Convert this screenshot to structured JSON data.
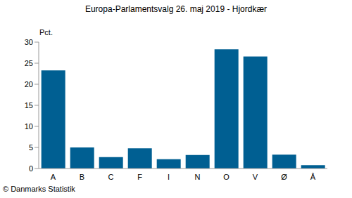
{
  "chart_data": {
    "type": "bar",
    "title": "Europa-Parlamentsvalg 26. maj 2019 - Hjordkær",
    "ylabel": "Pct.",
    "source": "© Danmarks Statistik",
    "categories": [
      "A",
      "B",
      "C",
      "F",
      "I",
      "N",
      "O",
      "V",
      "Ø",
      "Å"
    ],
    "values": [
      23.3,
      5.0,
      2.7,
      4.8,
      2.2,
      3.2,
      28.3,
      26.6,
      3.3,
      0.8
    ],
    "color": "#005f92",
    "ylim": [
      0,
      30
    ],
    "yticks": [
      0,
      5,
      10,
      15,
      20,
      25,
      30
    ],
    "grid": false
  }
}
